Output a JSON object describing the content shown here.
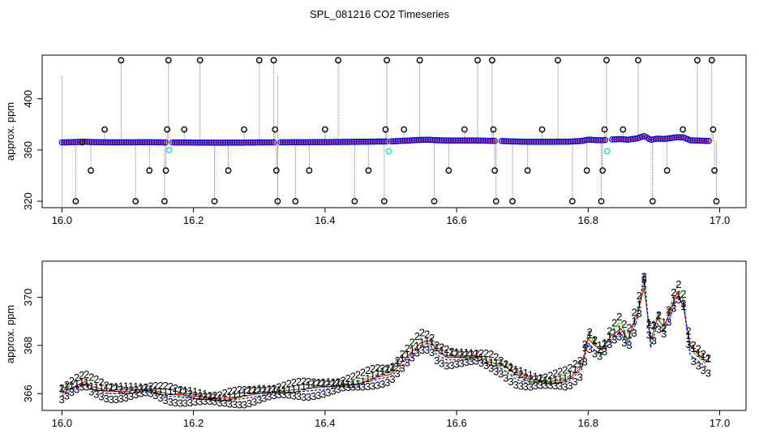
{
  "title": "SPL_081216  CO2 Timeseries",
  "colors": {
    "series1": "#ff0000",
    "series2": "#00cc00",
    "series3": "#0000ff",
    "outlier": "#000000",
    "flagged": "#00e5e5",
    "dots": "#dd2200",
    "dropline": "#777777"
  },
  "chart_data": [
    {
      "type": "scatter",
      "name": "raw-co2",
      "title": "SPL_081216  CO2 Timeseries",
      "xlabel": "",
      "ylabel": "approx. ppm",
      "xlim": [
        15.97,
        17.04
      ],
      "ylim": [
        315,
        434
      ],
      "xticks": [
        16.0,
        16.2,
        16.4,
        16.6,
        16.8,
        17.0
      ],
      "xtick_labels": [
        "16.0",
        "16.2",
        "16.4",
        "16.6",
        "16.8",
        "17.0"
      ],
      "yticks": [
        320,
        360,
        400
      ],
      "ytick_labels": [
        "320",
        "360",
        "400"
      ],
      "baseline_series": "smoothed CO2 record (same as lower panel), drawn as blue open circles",
      "outliers": {
        "x": [
          16.021,
          16.031,
          16.044,
          16.065,
          16.09,
          16.112,
          16.133,
          16.156,
          16.158,
          16.16,
          16.162,
          16.186,
          16.21,
          16.232,
          16.253,
          16.277,
          16.3,
          16.322,
          16.324,
          16.326,
          16.328,
          16.355,
          16.376,
          16.4,
          16.42,
          16.445,
          16.466,
          16.49,
          16.492,
          16.494,
          16.52,
          16.544,
          16.566,
          16.588,
          16.612,
          16.632,
          16.654,
          16.656,
          16.658,
          16.66,
          16.685,
          16.708,
          16.73,
          16.754,
          16.776,
          16.798,
          16.82,
          16.822,
          16.825,
          16.828,
          16.853,
          16.876,
          16.898,
          16.92,
          16.944,
          16.966,
          16.988,
          16.99,
          16.992,
          16.995
        ],
        "y": [
          320,
          366,
          344,
          376,
          430,
          320,
          344,
          320,
          344,
          376,
          430,
          376,
          430,
          320,
          344,
          376,
          430,
          430,
          376,
          344,
          320,
          320,
          344,
          376,
          430,
          320,
          344,
          320,
          376,
          430,
          376,
          430,
          320,
          344,
          376,
          430,
          430,
          376,
          344,
          320,
          320,
          344,
          376,
          430,
          320,
          344,
          320,
          344,
          376,
          430,
          376,
          430,
          320,
          344,
          376,
          430,
          430,
          376,
          344,
          320
        ]
      },
      "flagged": {
        "x": [
          16.163,
          16.497,
          16.829
        ],
        "y": [
          360,
          359,
          359
        ]
      }
    },
    {
      "type": "line",
      "name": "co2-smoothed",
      "title": "",
      "xlabel": "",
      "ylabel": "approx. ppm",
      "xlim": [
        15.97,
        17.04
      ],
      "ylim": [
        365.3,
        371.5
      ],
      "xticks": [
        16.0,
        16.2,
        16.4,
        16.6,
        16.8,
        17.0
      ],
      "xtick_labels": [
        "16.0",
        "16.2",
        "16.4",
        "16.6",
        "16.8",
        "17.0"
      ],
      "yticks": [
        366,
        368,
        370
      ],
      "ytick_labels": [
        "366",
        "368",
        "370"
      ],
      "point_labels": [
        "1",
        "2",
        "3"
      ],
      "x": [
        16.0,
        16.02,
        16.035,
        16.045,
        16.07,
        16.1,
        16.13,
        16.16,
        16.2,
        16.24,
        16.28,
        16.3,
        16.33,
        16.37,
        16.41,
        16.45,
        16.48,
        16.5,
        16.52,
        16.545,
        16.56,
        16.57,
        16.585,
        16.6,
        16.63,
        16.65,
        16.67,
        16.69,
        16.71,
        16.74,
        16.77,
        16.79,
        16.8,
        16.81,
        16.82,
        16.835,
        16.85,
        16.86,
        16.875,
        16.885,
        16.895,
        16.905,
        16.915,
        16.925,
        16.935,
        16.945,
        16.955,
        16.965,
        16.98
      ],
      "series": [
        {
          "name": "1",
          "values": [
            366.0,
            366.3,
            366.5,
            366.3,
            366.1,
            366.1,
            366.2,
            366.0,
            365.9,
            365.8,
            365.9,
            366.0,
            366.1,
            366.2,
            366.3,
            366.4,
            366.7,
            366.8,
            367.4,
            368.1,
            368.2,
            367.8,
            367.5,
            367.5,
            367.6,
            367.3,
            367.2,
            366.8,
            366.6,
            366.5,
            366.6,
            367.1,
            368.3,
            368.0,
            367.8,
            368.4,
            368.7,
            368.2,
            369.3,
            370.4,
            368.2,
            369.1,
            368.8,
            369.4,
            370.2,
            369.6,
            368.0,
            367.7,
            367.3
          ]
        },
        {
          "name": "2",
          "values": [
            366.1,
            366.5,
            366.6,
            366.4,
            366.0,
            366.0,
            366.1,
            366.0,
            365.8,
            365.7,
            365.9,
            366.0,
            366.1,
            366.2,
            366.3,
            366.5,
            366.8,
            366.9,
            367.6,
            368.3,
            368.1,
            367.7,
            367.6,
            367.5,
            367.5,
            367.4,
            367.0,
            366.7,
            366.5,
            366.5,
            366.7,
            367.2,
            368.5,
            368.1,
            367.6,
            368.6,
            369.0,
            368.2,
            369.5,
            370.6,
            368.0,
            369.3,
            368.6,
            369.6,
            370.5,
            369.9,
            367.8,
            367.6,
            367.2
          ]
        },
        {
          "name": "3",
          "values": [
            365.9,
            366.2,
            366.4,
            366.2,
            366.0,
            366.0,
            366.1,
            365.9,
            365.8,
            365.7,
            365.8,
            365.9,
            366.0,
            366.1,
            366.2,
            366.4,
            366.6,
            366.7,
            367.2,
            367.9,
            368.0,
            367.6,
            367.4,
            367.4,
            367.4,
            367.2,
            367.0,
            366.6,
            366.4,
            366.4,
            366.5,
            367.0,
            368.1,
            367.8,
            367.6,
            368.2,
            368.5,
            368.0,
            369.1,
            371.0,
            367.9,
            368.9,
            368.6,
            369.2,
            370.0,
            369.8,
            367.6,
            367.4,
            367.1
          ]
        }
      ]
    }
  ]
}
